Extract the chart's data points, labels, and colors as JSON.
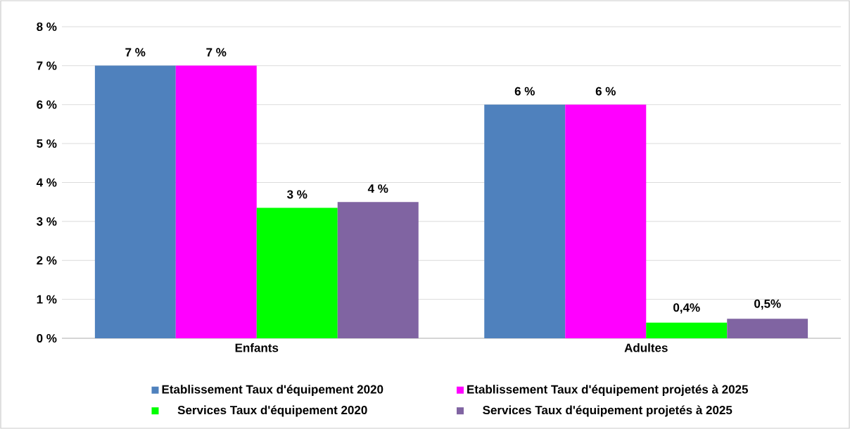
{
  "chart_data": {
    "type": "bar",
    "categories": [
      "Enfants",
      "Adultes"
    ],
    "series": [
      {
        "name": "Etablissement Taux d'équipement 2020",
        "color": "#4f81bd",
        "values": [
          7,
          6
        ],
        "value_labels": [
          "7 %",
          "6 %"
        ]
      },
      {
        "name": "Etablissement Taux d'équipement projetés à 2025",
        "color": "#ff00ff",
        "values": [
          7,
          6
        ],
        "value_labels": [
          "7 %",
          "6 %"
        ]
      },
      {
        "name": "Services Taux d'équipement 2020",
        "color": "#00ff00",
        "values": [
          3.35,
          0.4
        ],
        "value_labels": [
          "3 %",
          "0,4%"
        ]
      },
      {
        "name": "Services Taux d'équipement projetés à 2025",
        "color": "#8064a2",
        "values": [
          3.5,
          0.5
        ],
        "value_labels": [
          "4 %",
          "0,5%"
        ]
      }
    ],
    "ylim": [
      0,
      8
    ],
    "yticks": [
      {
        "value": 0,
        "label": "0 %"
      },
      {
        "value": 1,
        "label": "1 %"
      },
      {
        "value": 2,
        "label": "2 %"
      },
      {
        "value": 3,
        "label": "3 %"
      },
      {
        "value": 4,
        "label": "4 %"
      },
      {
        "value": 5,
        "label": "5 %"
      },
      {
        "value": 6,
        "label": "6 %"
      },
      {
        "value": 7,
        "label": "7 %"
      },
      {
        "value": 8,
        "label": "8 %"
      }
    ],
    "grid": "y",
    "legend": "bottom"
  }
}
